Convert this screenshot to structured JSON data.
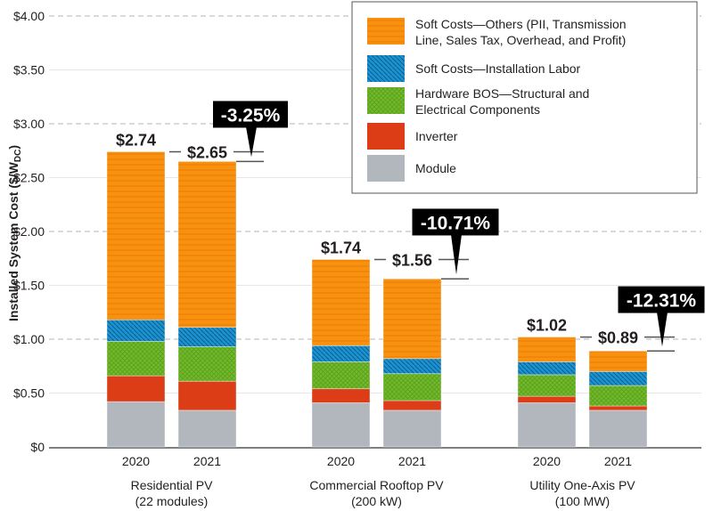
{
  "chart_data": {
    "type": "bar",
    "stacked": true,
    "ylabel": "Installed System Cost ($/W",
    "ylabel_sub": "DC",
    "ylabel_close": ")",
    "ylim": [
      0,
      4.0
    ],
    "yticks": [
      "$0",
      "$0.50",
      "$1.00",
      "$1.50",
      "$2.00",
      "$2.50",
      "$3.00",
      "$3.50",
      "$4.00"
    ],
    "grid": true,
    "legend_placement": "top-right",
    "groups": [
      {
        "name_line1": "Residential PV",
        "name_line2": "(22 modules)",
        "years": [
          "2020",
          "2021"
        ],
        "totals": [
          "$2.74",
          "$2.65"
        ],
        "total_values": [
          2.74,
          2.65
        ],
        "change": "-3.25%"
      },
      {
        "name_line1": "Commercial Rooftop PV",
        "name_line2": "(200 kW)",
        "years": [
          "2020",
          "2021"
        ],
        "totals": [
          "$1.74",
          "$1.56"
        ],
        "total_values": [
          1.74,
          1.56
        ],
        "change": "-10.71%"
      },
      {
        "name_line1": "Utility One-Axis PV",
        "name_line2": "(100 MW)",
        "years": [
          "2020",
          "2021"
        ],
        "totals": [
          "$1.02",
          "$0.89"
        ],
        "total_values": [
          1.02,
          0.89
        ],
        "change": "-12.31%"
      }
    ],
    "series": [
      {
        "name": "Module",
        "color": "#b1b7bd",
        "values": [
          [
            0.42,
            0.34
          ],
          [
            0.41,
            0.34
          ],
          [
            0.41,
            0.34
          ]
        ]
      },
      {
        "name": "Inverter",
        "color": "#dc3d17",
        "values": [
          [
            0.24,
            0.27
          ],
          [
            0.13,
            0.09
          ],
          [
            0.06,
            0.04
          ]
        ]
      },
      {
        "name": "Hardware BOS—Structural and Electrical Components",
        "legend_line1": "Hardware BOS—Structural and",
        "legend_line2": "Electrical Components",
        "color": "#72b92b",
        "values": [
          [
            0.32,
            0.32
          ],
          [
            0.25,
            0.25
          ],
          [
            0.2,
            0.19
          ]
        ]
      },
      {
        "name": "Soft Costs—Installation Labor",
        "legend_line1": "Soft Costs—Installation Labor",
        "legend_line2": "",
        "color": "#1b93d2",
        "values": [
          [
            0.2,
            0.18
          ],
          [
            0.15,
            0.14
          ],
          [
            0.12,
            0.13
          ]
        ]
      },
      {
        "name": "Soft Costs—Others (PII, Transmission Line, Sales Tax, Overhead, and Profit)",
        "legend_line1": "Soft Costs—Others (PII, Transmission",
        "legend_line2": "Line, Sales Tax, Overhead, and Profit)",
        "color": "#f7910f",
        "values": [
          [
            1.56,
            1.54
          ],
          [
            0.8,
            0.74
          ],
          [
            0.23,
            0.19
          ]
        ]
      }
    ]
  }
}
